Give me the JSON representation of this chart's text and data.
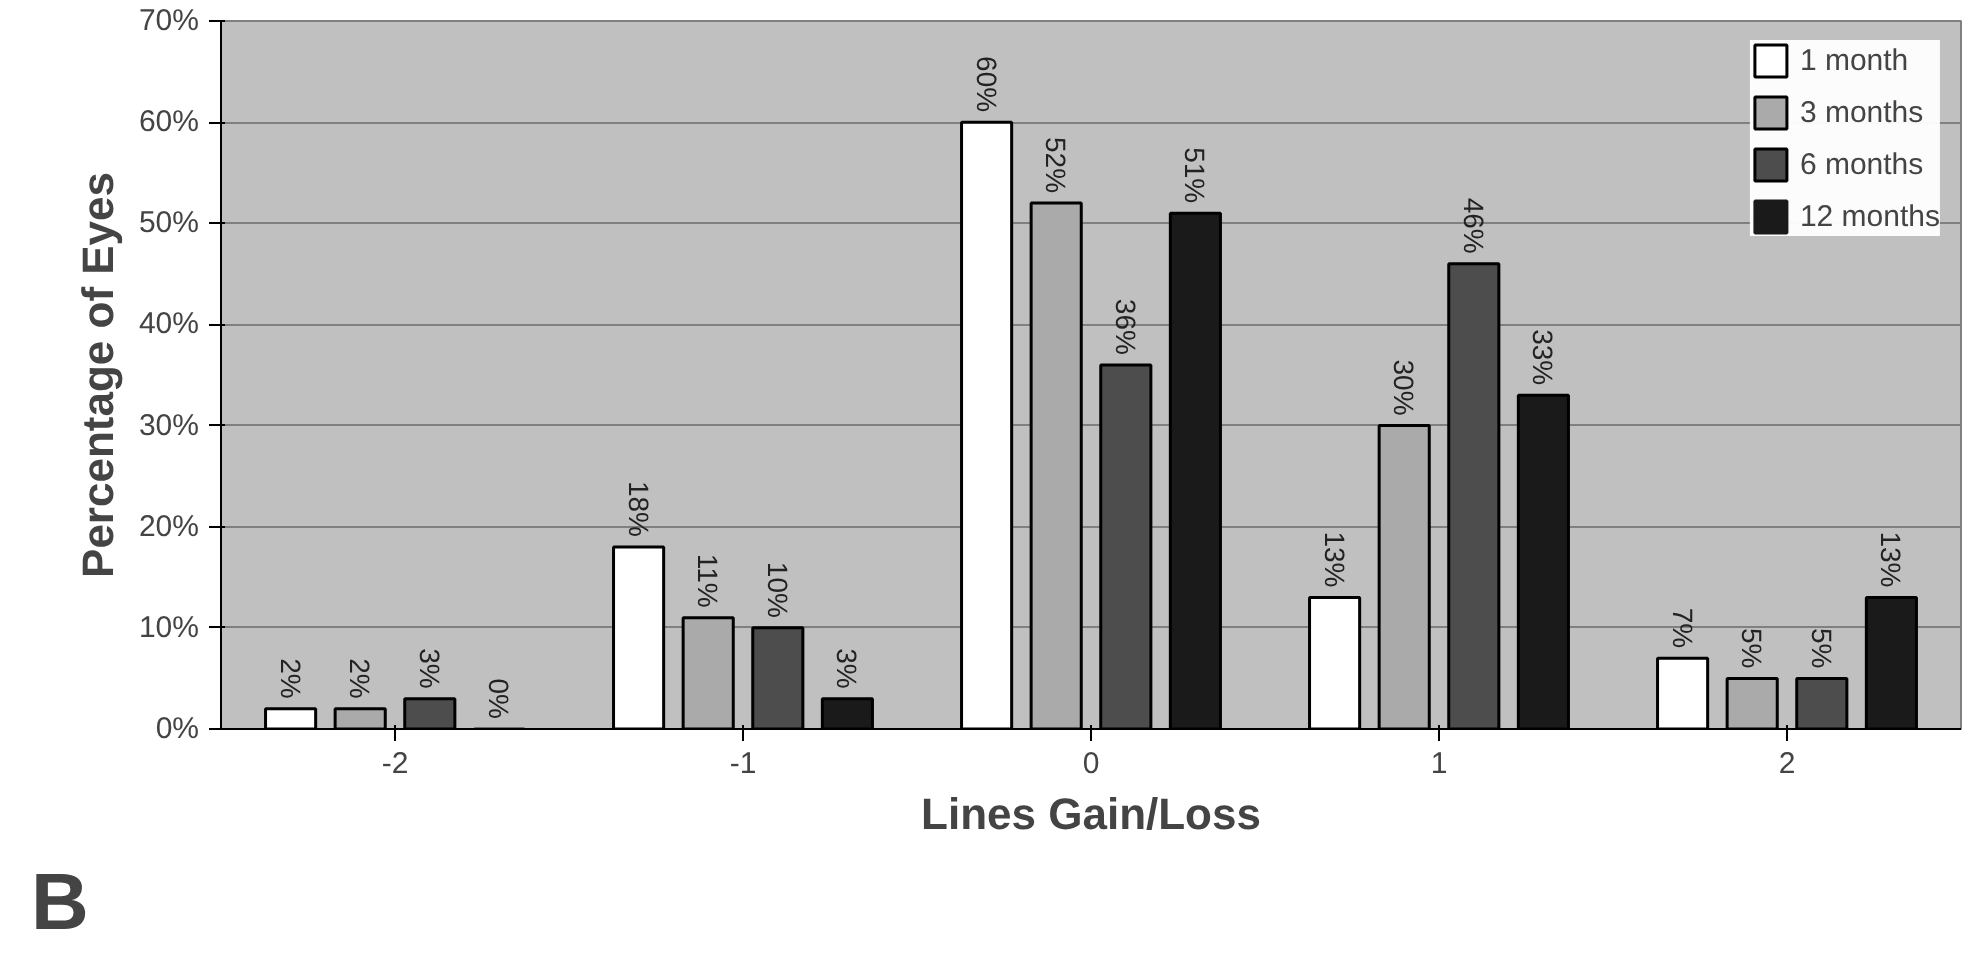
{
  "chart_data": {
    "type": "bar",
    "xlabel": "Lines Gain/Loss",
    "ylabel": "Percentage of Eyes",
    "categories": [
      "-2",
      "-1",
      "0",
      "1",
      "2"
    ],
    "series": [
      {
        "name": "1 month",
        "color": "#ffffff",
        "values": [
          2,
          18,
          60,
          13,
          7
        ],
        "value_labels": [
          "2%",
          "18%",
          "60%",
          "13%",
          "7%"
        ]
      },
      {
        "name": "3 months",
        "color": "#aaaaaa",
        "values": [
          2,
          11,
          52,
          30,
          5
        ],
        "value_labels": [
          "2%",
          "11%",
          "52%",
          "30%",
          "5%"
        ]
      },
      {
        "name": "6 months",
        "color": "#4d4d4d",
        "values": [
          3,
          10,
          36,
          46,
          5
        ],
        "value_labels": [
          "3%",
          "10%",
          "36%",
          "46%",
          "5%"
        ]
      },
      {
        "name": "12 months",
        "color": "#1a1a1a",
        "values": [
          0,
          3,
          51,
          33,
          13
        ],
        "value_labels": [
          "0%",
          "3%",
          "51%",
          "33%",
          "13%"
        ]
      }
    ],
    "ylim": [
      0,
      70
    ],
    "yticks": [
      {
        "value": 0,
        "label": "0%"
      },
      {
        "value": 10,
        "label": "10%"
      },
      {
        "value": 20,
        "label": "20%"
      },
      {
        "value": 30,
        "label": "30%"
      },
      {
        "value": 40,
        "label": "40%"
      },
      {
        "value": 50,
        "label": "50%"
      },
      {
        "value": 60,
        "label": "60%"
      },
      {
        "value": 70,
        "label": "70%"
      }
    ],
    "grid": "y",
    "legend": "top right",
    "annotations": [
      "B"
    ]
  }
}
